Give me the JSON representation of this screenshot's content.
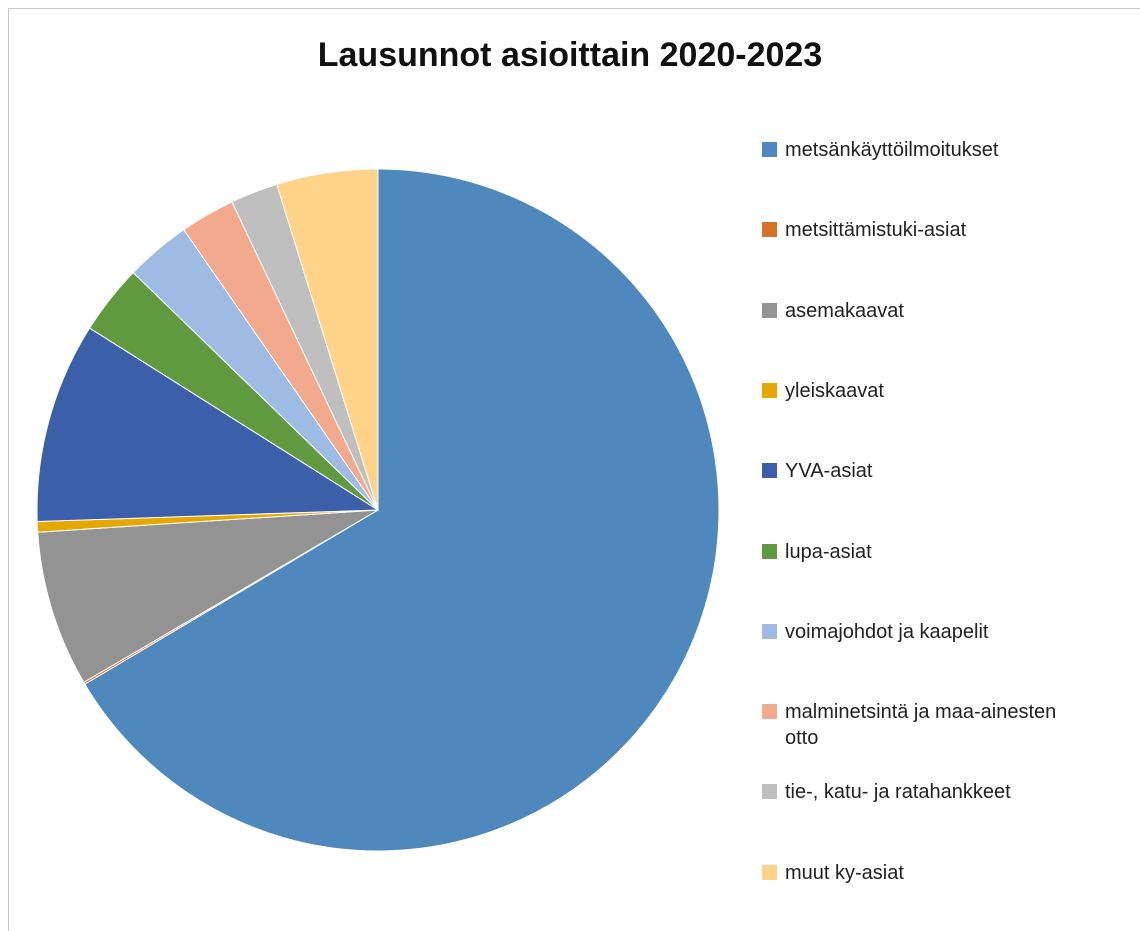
{
  "chart_data": {
    "type": "pie",
    "title": "Lausunnot asioittain 2020-2023",
    "categories": [
      "metsänkäyttöilmoitukset",
      "metsittämistuki-asiat",
      "asemakaavat",
      "yleiskaavat",
      "YVA-asiat",
      "lupa-asiat",
      "voimajohdot ja kaapelit",
      "malminetsintä ja maa-ainesten otto",
      "tie-, katu- ja ratahankkeet",
      "muut ky-asiat"
    ],
    "values": [
      66.5,
      0.1,
      7.4,
      0.5,
      9.5,
      3.3,
      3.1,
      2.6,
      2.25,
      4.8
    ],
    "colors": [
      "#4f88bd",
      "#d9712b",
      "#939393",
      "#e5a800",
      "#3b5fa8",
      "#5f9a3e",
      "#9dbbe3",
      "#f2a98d",
      "#bfbfbf",
      "#ffd388"
    ],
    "legend": "right"
  }
}
